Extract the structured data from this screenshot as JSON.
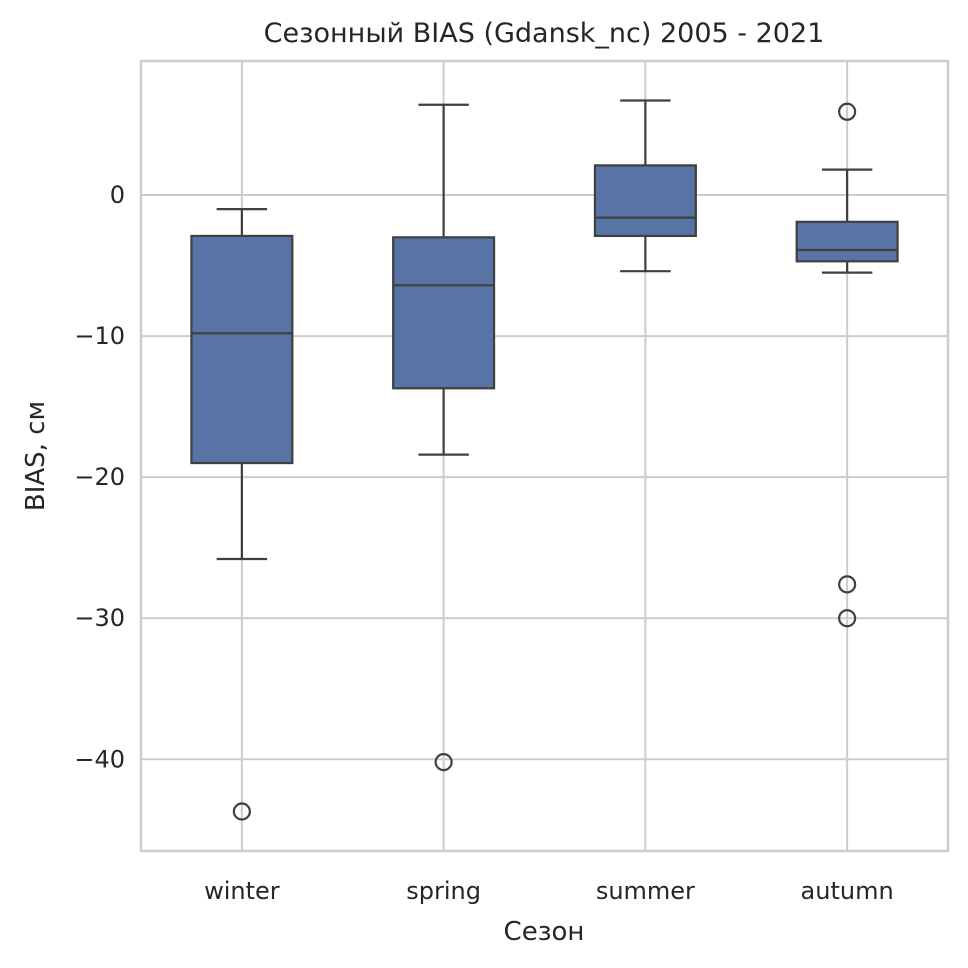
{
  "chart_data": {
    "type": "box",
    "title": "Сезонный BIAS (Gdansk_nc) 2005 - 2021",
    "xlabel": "Сезон",
    "ylabel": "BIAS, см",
    "ylim": [
      -46.5,
      9.5
    ],
    "yticks": [
      0,
      -10,
      -20,
      -30,
      -40
    ],
    "ytick_labels": [
      "0",
      "−10",
      "−20",
      "−30",
      "−40"
    ],
    "grid": true,
    "box_color": "#5874a7",
    "categories": [
      "winter",
      "spring",
      "summer",
      "autumn"
    ],
    "boxes": [
      {
        "category": "winter",
        "whisker_low": -25.8,
        "q1": -19.0,
        "median": -9.8,
        "q3": -2.9,
        "whisker_high": -1.0,
        "outliers": [
          -43.7
        ]
      },
      {
        "category": "spring",
        "whisker_low": -18.4,
        "q1": -13.7,
        "median": -6.4,
        "q3": -3.0,
        "whisker_high": 6.4,
        "outliers": [
          -40.2
        ]
      },
      {
        "category": "summer",
        "whisker_low": -5.4,
        "q1": -2.9,
        "median": -1.6,
        "q3": 2.1,
        "whisker_high": 6.7,
        "outliers": []
      },
      {
        "category": "autumn",
        "whisker_low": -5.5,
        "q1": -4.7,
        "median": -3.9,
        "q3": -1.9,
        "whisker_high": 1.8,
        "outliers": [
          5.9,
          -27.6,
          -30.0
        ]
      }
    ]
  }
}
